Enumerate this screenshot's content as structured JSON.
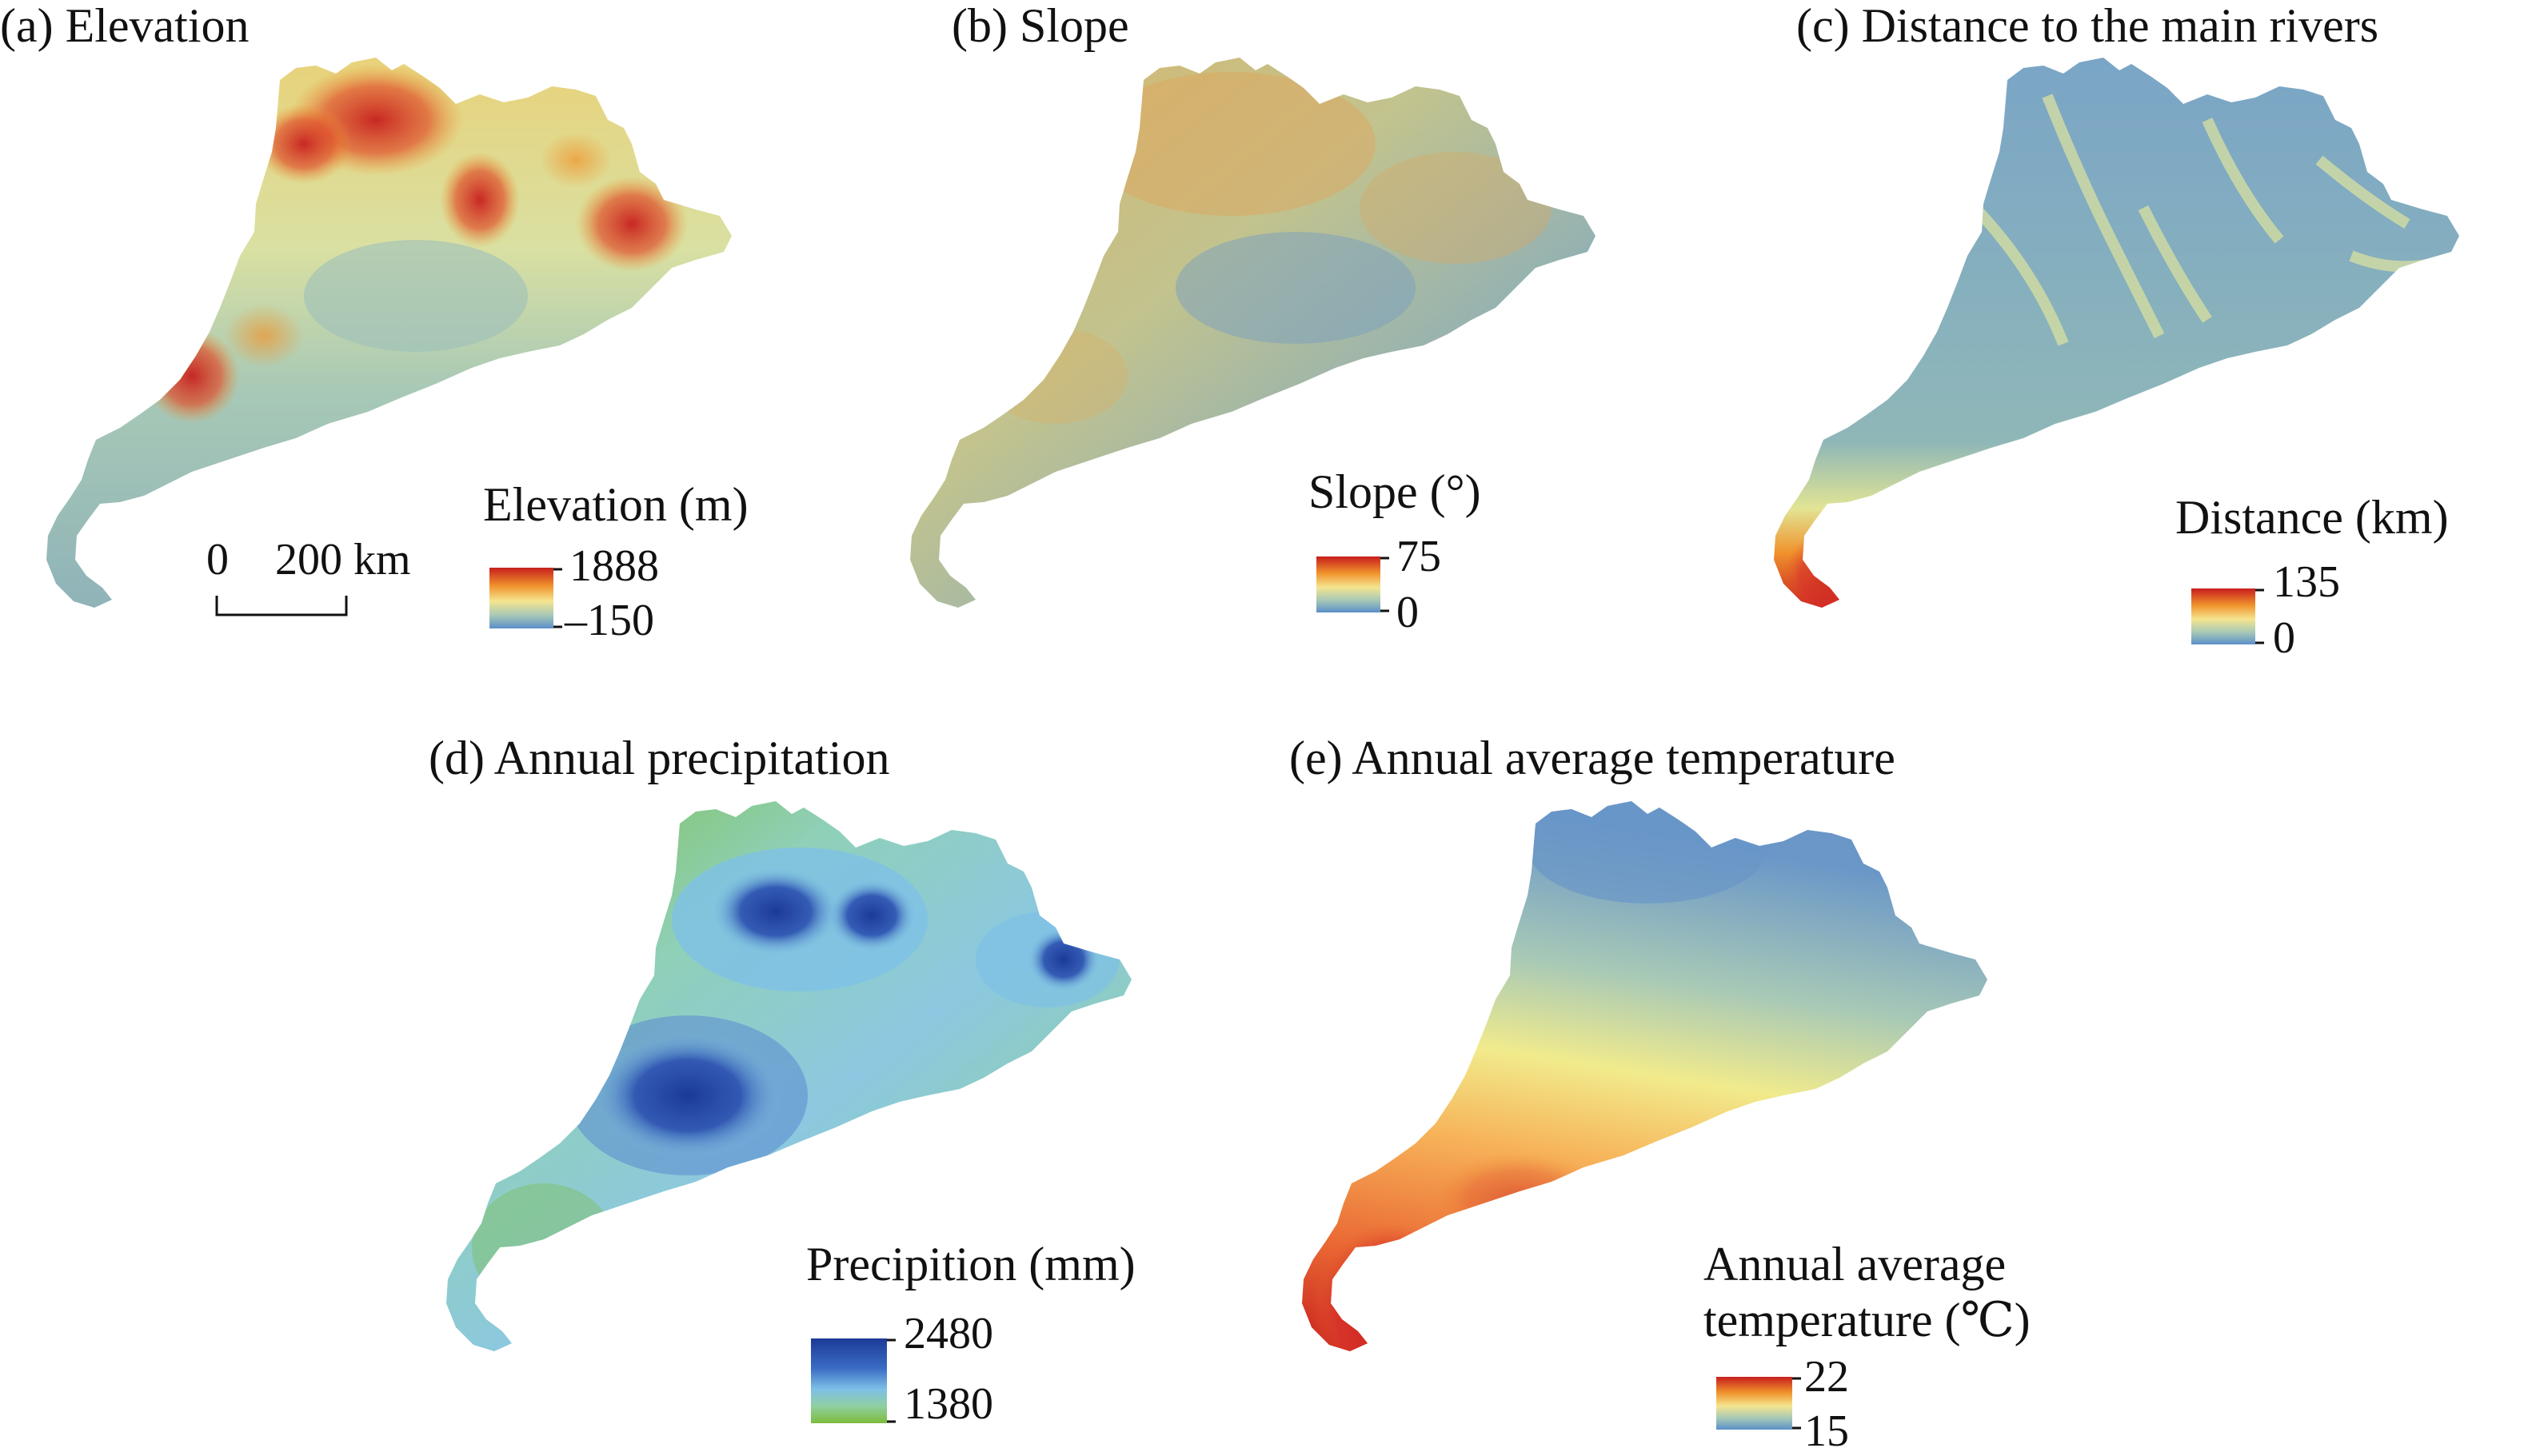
{
  "figure": {
    "panels": [
      {
        "id": "a",
        "title": "(a) Elevation",
        "legend_title": "Elevation (m)",
        "legend_max": "1888",
        "legend_min": "–150",
        "colors": [
          "#c71e1d",
          "#f0932c",
          "#f5e58f",
          "#a8c9b6",
          "#5b8fc9"
        ]
      },
      {
        "id": "b",
        "title": "(b) Slope",
        "legend_title": "Slope (°)",
        "legend_max": "75",
        "legend_min": "0",
        "colors": [
          "#c71e1d",
          "#f0932c",
          "#f5e58f",
          "#a8c9b6",
          "#5b8fc9"
        ]
      },
      {
        "id": "c",
        "title": "(c) Distance to the main rivers",
        "legend_title": "Distance (km)",
        "legend_max": "135",
        "legend_min": "0",
        "colors": [
          "#c71e1d",
          "#f0932c",
          "#f5e58f",
          "#a8c9b6",
          "#5b8fc9"
        ]
      },
      {
        "id": "d",
        "title": "(d) Annual precipitation",
        "legend_title": "Precipition (mm)",
        "legend_max": "2480",
        "legend_min": "1380",
        "colors": [
          "#1c3a98",
          "#3a6cc4",
          "#7ec0e6",
          "#8fd0a0",
          "#7cbc3c"
        ]
      },
      {
        "id": "e",
        "title": "(e) Annual average temperature",
        "legend_title_line1": "Annual average",
        "legend_title_line2": "temperature (℃)",
        "legend_max": "22",
        "legend_min": "15",
        "colors": [
          "#c71e1d",
          "#f0932c",
          "#f5e58f",
          "#a8c9b6",
          "#5b8fc9"
        ]
      }
    ],
    "scale_bar": {
      "zero": "0",
      "distance": "200 km"
    }
  }
}
